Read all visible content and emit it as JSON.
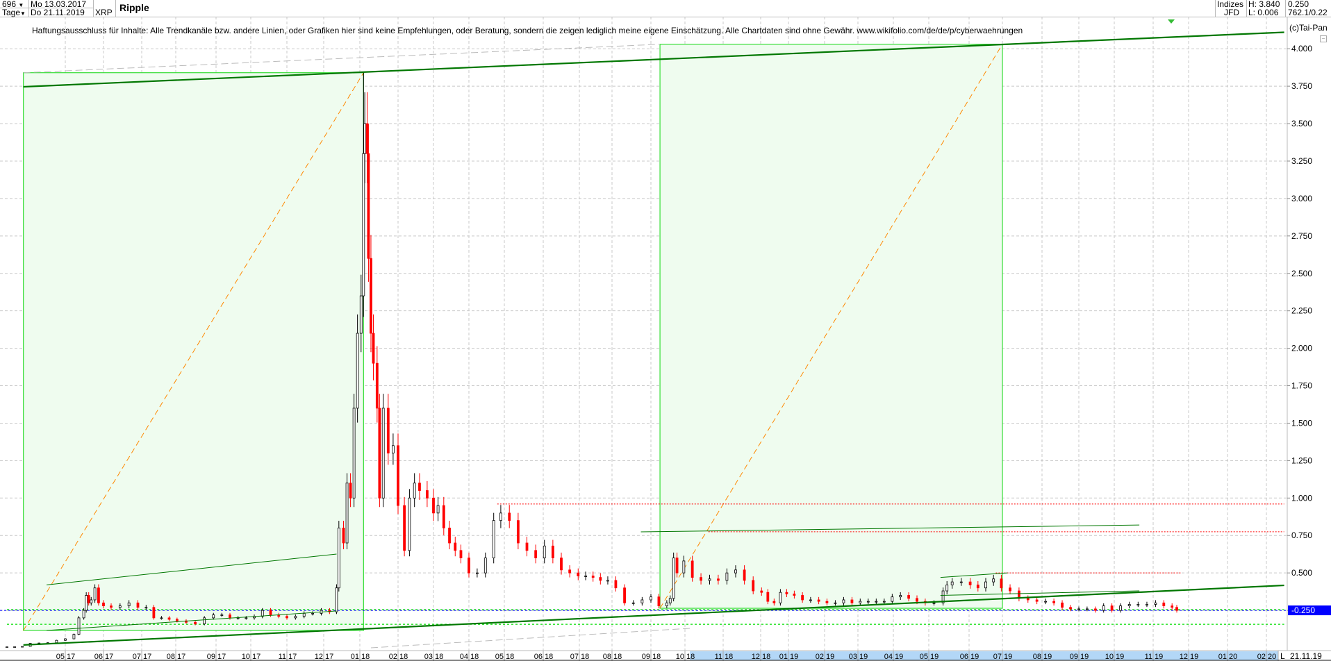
{
  "header": {
    "bars_count": "696",
    "period": "Tage",
    "start_date": "Mo 13.03.2017",
    "end_date": "Do 21.11.2019",
    "symbol": "XRP",
    "title": "Ripple",
    "source_line1": "Indizes",
    "source_line2": "JFD",
    "high": "H: 3.840",
    "low": "L: 0.006",
    "last_value": "0.250",
    "info": "762.1/0.22"
  },
  "disclaimer": "Haftungsausschluss für Inhalte: Alle Trendkanäle bzw. andere Linien, oder Grafiken hier sind keine Empfehlungen, oder Beratung, sondern die zeigen lediglich meine eigene Einschätzung. Alle Chartdaten sind ohne Gewähr.  www.wikifolio.com/de/de/p/cyberwaehrungen",
  "copyright": "(c)Tai-Pan",
  "axis_corner": "L",
  "axis_date": "21.11.19",
  "colors": {
    "up": "#000000",
    "down": "#ff0000",
    "channel": "#007700",
    "box": "#33dd33",
    "box_fill": "#effcef",
    "diag": "#ff8800",
    "resistance": "#ff0000",
    "support": "#00dd00",
    "price_marker": "#0000ff",
    "axis_highlight": "#b3d7f7"
  },
  "chart_data": {
    "type": "candlestick",
    "title": "Ripple",
    "ylim": [
      0,
      4.2
    ],
    "scale": "linear",
    "grid": true,
    "current_price": 0.25,
    "y_ticks": [
      "0.250",
      "0.500",
      "0.750",
      "1.000",
      "1.250",
      "1.500",
      "1.750",
      "2.000",
      "2.250",
      "2.500",
      "2.750",
      "3.000",
      "3.250",
      "3.500",
      "3.750",
      "4.000"
    ],
    "x_ticks": [
      {
        "m": "2017-05",
        "l": "05",
        "r": "17"
      },
      {
        "m": "2017-06",
        "l": "06",
        "r": "17"
      },
      {
        "m": "2017-07",
        "l": "07",
        "r": "17"
      },
      {
        "m": "2017-08",
        "l": "08",
        "r": "17"
      },
      {
        "m": "2017-09",
        "l": "09",
        "r": "17"
      },
      {
        "m": "2017-10",
        "l": "10",
        "r": "17"
      },
      {
        "m": "2017-11",
        "l": "11",
        "r": "17"
      },
      {
        "m": "2017-12",
        "l": "12",
        "r": "17"
      },
      {
        "m": "2018-01",
        "l": "01",
        "r": "18"
      },
      {
        "m": "2018-02",
        "l": "02",
        "r": "18"
      },
      {
        "m": "2018-03",
        "l": "03",
        "r": "18"
      },
      {
        "m": "2018-04",
        "l": "04",
        "r": "18"
      },
      {
        "m": "2018-05",
        "l": "05",
        "r": "18"
      },
      {
        "m": "2018-06",
        "l": "06",
        "r": "18"
      },
      {
        "m": "2018-07",
        "l": "07",
        "r": "18"
      },
      {
        "m": "2018-08",
        "l": "08",
        "r": "18"
      },
      {
        "m": "2018-09",
        "l": "09",
        "r": "18"
      },
      {
        "m": "2018-10",
        "l": "10",
        "r": "18"
      },
      {
        "m": "2018-11",
        "l": "11",
        "r": "18"
      },
      {
        "m": "2018-12",
        "l": "12",
        "r": "18"
      },
      {
        "m": "2019-01",
        "l": "01",
        "r": "19"
      },
      {
        "m": "2019-02",
        "l": "02",
        "r": "19"
      },
      {
        "m": "2019-03",
        "l": "03",
        "r": "19"
      },
      {
        "m": "2019-04",
        "l": "04",
        "r": "19"
      },
      {
        "m": "2019-05",
        "l": "05",
        "r": "19"
      },
      {
        "m": "2019-06",
        "l": "06",
        "r": "19"
      },
      {
        "m": "2019-07",
        "l": "07",
        "r": "19"
      },
      {
        "m": "2019-08",
        "l": "08",
        "r": "19"
      },
      {
        "m": "2019-09",
        "l": "09",
        "r": "19"
      },
      {
        "m": "2019-10",
        "l": "10",
        "r": "19"
      },
      {
        "m": "2019-11",
        "l": "11",
        "r": "19"
      },
      {
        "m": "2019-12",
        "l": "12",
        "r": "19"
      },
      {
        "m": "2020-01",
        "l": "01",
        "r": "20"
      },
      {
        "m": "2020-02",
        "l": "02",
        "r": "20"
      }
    ],
    "highlight_range": [
      "2018-10-05",
      "2020-02-10"
    ],
    "high_point": {
      "date": "2018-01-04",
      "value": 3.84
    },
    "series": [
      [
        "2017-03-13",
        0.0065
      ],
      [
        "2017-03-20",
        0.007
      ],
      [
        "2017-03-27",
        0.009
      ],
      [
        "2017-04-03",
        0.03
      ],
      [
        "2017-04-10",
        0.032
      ],
      [
        "2017-04-17",
        0.034
      ],
      [
        "2017-04-24",
        0.05
      ],
      [
        "2017-05-01",
        0.06
      ],
      [
        "2017-05-08",
        0.09
      ],
      [
        "2017-05-12",
        0.2
      ],
      [
        "2017-05-16",
        0.25
      ],
      [
        "2017-05-18",
        0.35
      ],
      [
        "2017-05-20",
        0.3
      ],
      [
        "2017-05-22",
        0.32
      ],
      [
        "2017-05-25",
        0.4
      ],
      [
        "2017-05-28",
        0.3
      ],
      [
        "2017-06-01",
        0.28
      ],
      [
        "2017-06-07",
        0.27
      ],
      [
        "2017-06-14",
        0.28
      ],
      [
        "2017-06-21",
        0.3
      ],
      [
        "2017-06-28",
        0.27
      ],
      [
        "2017-07-05",
        0.27
      ],
      [
        "2017-07-12",
        0.2
      ],
      [
        "2017-07-19",
        0.2
      ],
      [
        "2017-07-26",
        0.19
      ],
      [
        "2017-08-02",
        0.18
      ],
      [
        "2017-08-09",
        0.17
      ],
      [
        "2017-08-16",
        0.16
      ],
      [
        "2017-08-23",
        0.2
      ],
      [
        "2017-08-30",
        0.22
      ],
      [
        "2017-09-06",
        0.22
      ],
      [
        "2017-09-13",
        0.2
      ],
      [
        "2017-09-20",
        0.2
      ],
      [
        "2017-09-27",
        0.2
      ],
      [
        "2017-10-04",
        0.21
      ],
      [
        "2017-10-11",
        0.25
      ],
      [
        "2017-10-18",
        0.22
      ],
      [
        "2017-10-25",
        0.21
      ],
      [
        "2017-11-01",
        0.2
      ],
      [
        "2017-11-08",
        0.21
      ],
      [
        "2017-11-15",
        0.23
      ],
      [
        "2017-11-22",
        0.23
      ],
      [
        "2017-11-29",
        0.25
      ],
      [
        "2017-12-06",
        0.24
      ],
      [
        "2017-12-12",
        0.4
      ],
      [
        "2017-12-14",
        0.8
      ],
      [
        "2017-12-18",
        0.7
      ],
      [
        "2017-12-21",
        1.1
      ],
      [
        "2017-12-24",
        1.0
      ],
      [
        "2017-12-27",
        1.6
      ],
      [
        "2017-12-30",
        2.1
      ],
      [
        "2018-01-02",
        2.35
      ],
      [
        "2018-01-04",
        3.3
      ],
      [
        "2018-01-05",
        3.5
      ],
      [
        "2018-01-07",
        3.3
      ],
      [
        "2018-01-08",
        2.6
      ],
      [
        "2018-01-10",
        2.1
      ],
      [
        "2018-01-12",
        1.9
      ],
      [
        "2018-01-15",
        1.6
      ],
      [
        "2018-01-17",
        1.0
      ],
      [
        "2018-01-20",
        1.6
      ],
      [
        "2018-01-24",
        1.3
      ],
      [
        "2018-01-28",
        1.35
      ],
      [
        "2018-02-01",
        0.95
      ],
      [
        "2018-02-06",
        0.65
      ],
      [
        "2018-02-10",
        1.0
      ],
      [
        "2018-02-14",
        1.1
      ],
      [
        "2018-02-18",
        1.05
      ],
      [
        "2018-02-24",
        1.0
      ],
      [
        "2018-03-01",
        0.9
      ],
      [
        "2018-03-05",
        0.95
      ],
      [
        "2018-03-10",
        0.8
      ],
      [
        "2018-03-15",
        0.7
      ],
      [
        "2018-03-20",
        0.65
      ],
      [
        "2018-03-25",
        0.6
      ],
      [
        "2018-04-01",
        0.5
      ],
      [
        "2018-04-08",
        0.5
      ],
      [
        "2018-04-15",
        0.6
      ],
      [
        "2018-04-22",
        0.85
      ],
      [
        "2018-04-28",
        0.9
      ],
      [
        "2018-05-05",
        0.85
      ],
      [
        "2018-05-12",
        0.7
      ],
      [
        "2018-05-19",
        0.65
      ],
      [
        "2018-05-26",
        0.6
      ],
      [
        "2018-06-02",
        0.68
      ],
      [
        "2018-06-09",
        0.6
      ],
      [
        "2018-06-16",
        0.52
      ],
      [
        "2018-06-23",
        0.5
      ],
      [
        "2018-06-30",
        0.48
      ],
      [
        "2018-07-07",
        0.48
      ],
      [
        "2018-07-14",
        0.47
      ],
      [
        "2018-07-21",
        0.45
      ],
      [
        "2018-07-28",
        0.45
      ],
      [
        "2018-08-04",
        0.4
      ],
      [
        "2018-08-11",
        0.3
      ],
      [
        "2018-08-18",
        0.3
      ],
      [
        "2018-08-25",
        0.32
      ],
      [
        "2018-09-01",
        0.34
      ],
      [
        "2018-09-08",
        0.28
      ],
      [
        "2018-09-15",
        0.3
      ],
      [
        "2018-09-18",
        0.33
      ],
      [
        "2018-09-21",
        0.6
      ],
      [
        "2018-09-24",
        0.5
      ],
      [
        "2018-09-30",
        0.58
      ],
      [
        "2018-10-07",
        0.47
      ],
      [
        "2018-10-14",
        0.45
      ],
      [
        "2018-10-21",
        0.46
      ],
      [
        "2018-10-28",
        0.45
      ],
      [
        "2018-11-04",
        0.5
      ],
      [
        "2018-11-11",
        0.52
      ],
      [
        "2018-11-18",
        0.45
      ],
      [
        "2018-11-25",
        0.38
      ],
      [
        "2018-12-02",
        0.37
      ],
      [
        "2018-12-09",
        0.31
      ],
      [
        "2018-12-16",
        0.3
      ],
      [
        "2018-12-23",
        0.37
      ],
      [
        "2018-12-30",
        0.36
      ],
      [
        "2019-01-06",
        0.35
      ],
      [
        "2019-01-13",
        0.32
      ],
      [
        "2019-01-20",
        0.32
      ],
      [
        "2019-01-27",
        0.31
      ],
      [
        "2019-02-03",
        0.3
      ],
      [
        "2019-02-10",
        0.3
      ],
      [
        "2019-02-17",
        0.32
      ],
      [
        "2019-02-24",
        0.3
      ],
      [
        "2019-03-03",
        0.31
      ],
      [
        "2019-03-10",
        0.31
      ],
      [
        "2019-03-17",
        0.31
      ],
      [
        "2019-03-24",
        0.31
      ],
      [
        "2019-03-31",
        0.34
      ],
      [
        "2019-04-07",
        0.35
      ],
      [
        "2019-04-14",
        0.33
      ],
      [
        "2019-04-21",
        0.31
      ],
      [
        "2019-04-28",
        0.3
      ],
      [
        "2019-05-05",
        0.3
      ],
      [
        "2019-05-12",
        0.38
      ],
      [
        "2019-05-15",
        0.42
      ],
      [
        "2019-05-19",
        0.44
      ],
      [
        "2019-05-26",
        0.44
      ],
      [
        "2019-06-02",
        0.42
      ],
      [
        "2019-06-09",
        0.4
      ],
      [
        "2019-06-16",
        0.44
      ],
      [
        "2019-06-23",
        0.46
      ],
      [
        "2019-06-30",
        0.4
      ],
      [
        "2019-07-07",
        0.38
      ],
      [
        "2019-07-14",
        0.33
      ],
      [
        "2019-07-21",
        0.32
      ],
      [
        "2019-07-28",
        0.31
      ],
      [
        "2019-08-04",
        0.31
      ],
      [
        "2019-08-11",
        0.3
      ],
      [
        "2019-08-18",
        0.27
      ],
      [
        "2019-08-25",
        0.26
      ],
      [
        "2019-09-01",
        0.26
      ],
      [
        "2019-09-08",
        0.26
      ],
      [
        "2019-09-15",
        0.25
      ],
      [
        "2019-09-22",
        0.28
      ],
      [
        "2019-09-29",
        0.25
      ],
      [
        "2019-10-06",
        0.28
      ],
      [
        "2019-10-13",
        0.29
      ],
      [
        "2019-10-20",
        0.29
      ],
      [
        "2019-10-27",
        0.29
      ],
      [
        "2019-11-03",
        0.3
      ],
      [
        "2019-11-10",
        0.28
      ],
      [
        "2019-11-17",
        0.27
      ],
      [
        "2019-11-21",
        0.25
      ]
    ],
    "drawings": {
      "boxes": [
        {
          "from": "2017-03-28",
          "to": "2018-01-04",
          "low": 0.116,
          "high": 3.84
        },
        {
          "from": "2018-09-09",
          "to": "2019-07-01",
          "low": 0.264,
          "high": 4.03
        }
      ],
      "diagonals": [
        {
          "from": [
            "2017-03-28",
            0.116
          ],
          "to": [
            "2018-01-04",
            3.84
          ]
        },
        {
          "from": [
            "2018-09-09",
            0.264
          ],
          "to": [
            "2019-07-01",
            4.03
          ]
        }
      ],
      "thick_lines": [
        {
          "from": [
            "2017-03-28",
            3.746
          ],
          "to": [
            "2020-02-15",
            4.11
          ]
        },
        {
          "from": [
            "2017-03-28",
            0.019
          ],
          "to": [
            "2020-02-15",
            0.417
          ]
        }
      ],
      "thin_lines": [
        {
          "from": [
            "2017-04-16",
            0.42
          ],
          "to": [
            "2017-12-12",
            0.626
          ]
        },
        {
          "from": [
            "2017-04-16",
            0.116
          ],
          "to": [
            "2017-12-12",
            0.246
          ]
        },
        {
          "from": [
            "2018-08-24",
            0.774
          ],
          "to": [
            "2019-10-21",
            0.82
          ]
        },
        {
          "from": [
            "2019-05-10",
            0.47
          ],
          "to": [
            "2019-07-05",
            0.5
          ]
        },
        {
          "from": [
            "2019-05-10",
            0.35
          ],
          "to": [
            "2019-10-21",
            0.38
          ]
        }
      ],
      "gray_dashed": [
        {
          "from": [
            "2017-03-28",
            3.84
          ],
          "to": [
            "2018-09-09",
            4.03
          ]
        },
        {
          "from": [
            "2018-01-10",
            0.0
          ],
          "to": [
            "2018-10-05",
            0.13
          ]
        }
      ],
      "resistance": [
        {
          "value": 0.96,
          "from": "2018-04-25",
          "to": "2020-02-15"
        },
        {
          "value": 0.775,
          "from": "2018-10-20",
          "to": "2020-02-15"
        },
        {
          "value": 0.5,
          "from": "2019-06-25",
          "to": "2019-11-25"
        }
      ],
      "support": [
        {
          "value": 0.255,
          "from": "2017-03-13",
          "to": "2020-02-15"
        },
        {
          "value": 0.157,
          "from": "2017-03-13",
          "to": "2020-02-15"
        }
      ]
    }
  }
}
